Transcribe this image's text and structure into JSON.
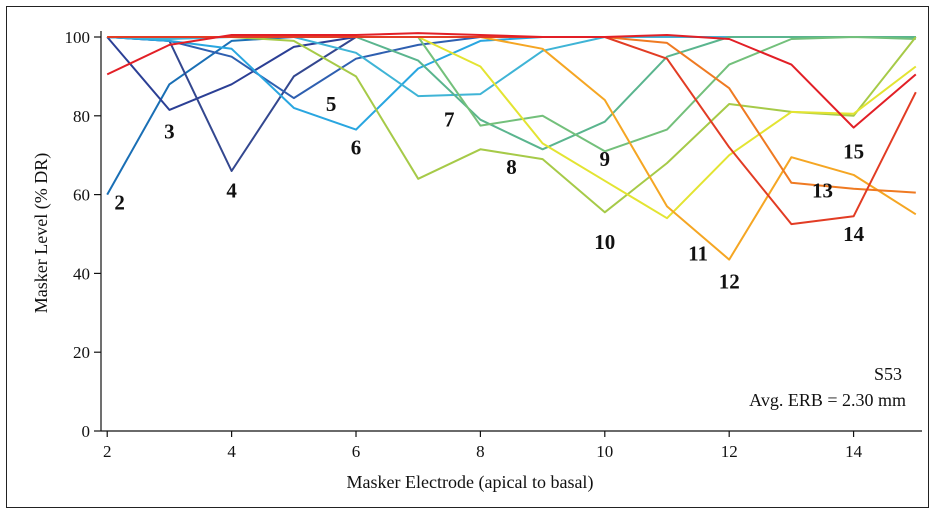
{
  "chart_data": {
    "type": "line",
    "xlabel": "Masker Electrode  (apical to basal)",
    "ylabel": "Masker Level (% DR)",
    "xlim": [
      1.9,
      15.1
    ],
    "ylim": [
      0,
      100
    ],
    "xticks": [
      2,
      4,
      6,
      8,
      10,
      12,
      14
    ],
    "yticks": [
      0,
      20,
      40,
      60,
      80,
      100
    ],
    "grid": false,
    "annotations": [
      "S53",
      "Avg. ERB = 2.30 mm"
    ],
    "x": [
      2,
      3,
      4,
      5,
      6,
      7,
      8,
      9,
      10,
      11,
      12,
      13,
      14,
      15
    ],
    "series": [
      {
        "name": "2",
        "color": "#1a6fb5",
        "x": [
          2,
          3,
          4,
          5,
          6,
          7,
          8,
          9,
          10,
          11,
          12,
          13,
          14,
          15
        ],
        "values": [
          60,
          88,
          99,
          100,
          100,
          100,
          100,
          100,
          100,
          100,
          100,
          100,
          100,
          100
        ],
        "label_at": [
          2.2,
          58
        ]
      },
      {
        "name": "3",
        "color": "#2b3f95",
        "x": [
          2,
          3,
          4,
          5,
          6,
          7,
          8,
          9,
          10,
          11,
          12,
          13,
          14,
          15
        ],
        "values": [
          100,
          81.5,
          88,
          97.5,
          100,
          100,
          100,
          100,
          100,
          100,
          100,
          100,
          100,
          100
        ],
        "label_at": [
          3,
          76
        ]
      },
      {
        "name": "4",
        "color": "#33478f",
        "x": [
          2,
          3,
          4,
          5,
          6,
          7,
          8,
          9,
          10,
          11,
          12,
          13,
          14,
          15
        ],
        "values": [
          100,
          99,
          66,
          90,
          100,
          100,
          100,
          100,
          100,
          100,
          100,
          100,
          100,
          100
        ],
        "label_at": [
          4,
          61
        ]
      },
      {
        "name": "5",
        "color": "#2e5fb0",
        "x": [
          2,
          3,
          4,
          5,
          6,
          7,
          8,
          9,
          10,
          11,
          12,
          13,
          14,
          15
        ],
        "values": [
          100,
          99,
          95,
          84.5,
          94.5,
          98,
          100,
          100,
          100,
          100,
          100,
          100,
          100,
          100
        ],
        "label_at": [
          5.6,
          83
        ]
      },
      {
        "name": "6",
        "color": "#29a6e0",
        "x": [
          2,
          3,
          4,
          5,
          6,
          7,
          8,
          9,
          10,
          11,
          12,
          13,
          14,
          15
        ],
        "values": [
          100,
          99,
          97,
          82,
          76.5,
          92,
          99,
          100,
          100,
          100,
          100,
          100,
          100,
          100
        ],
        "label_at": [
          6,
          72
        ]
      },
      {
        "name": "7",
        "color": "#3fb4d6",
        "x": [
          2,
          3,
          4,
          5,
          6,
          7,
          8,
          9,
          10,
          11,
          12,
          13,
          14,
          15
        ],
        "values": [
          100,
          99.5,
          100,
          100,
          96,
          85,
          85.5,
          96.5,
          100,
          100,
          100,
          100,
          100,
          100
        ],
        "label_at": [
          7.5,
          79
        ]
      },
      {
        "name": "8",
        "color": "#5ab58e",
        "x": [
          2,
          3,
          4,
          5,
          6,
          7,
          8,
          9,
          10,
          11,
          12,
          13,
          14,
          15
        ],
        "values": [
          100,
          100,
          100,
          100,
          100,
          94,
          79,
          71.5,
          78.5,
          95,
          100,
          100,
          100,
          100
        ],
        "label_at": [
          8.5,
          67
        ]
      },
      {
        "name": "9",
        "color": "#73c07b",
        "x": [
          2,
          3,
          4,
          5,
          6,
          7,
          8,
          9,
          10,
          11,
          12,
          13,
          14,
          15
        ],
        "values": [
          100,
          100,
          100,
          100,
          100,
          100,
          77.5,
          80,
          71,
          76.5,
          93,
          99.5,
          100,
          99.5
        ],
        "label_at": [
          10,
          69
        ]
      },
      {
        "name": "10",
        "color": "#a6ca48",
        "x": [
          2,
          3,
          4,
          5,
          6,
          7,
          8,
          9,
          10,
          11,
          12,
          13,
          14,
          15
        ],
        "values": [
          100,
          100,
          100,
          99,
          90,
          64,
          71.5,
          69,
          55.5,
          68,
          83,
          81,
          80,
          100
        ],
        "label_at": [
          10,
          48
        ]
      },
      {
        "name": "11",
        "color": "#e3e432",
        "x": [
          2,
          3,
          4,
          5,
          6,
          7,
          8,
          9,
          10,
          11,
          12,
          13,
          14,
          15
        ],
        "values": [
          100,
          100,
          100,
          100,
          100,
          100,
          92.5,
          73,
          63.5,
          54,
          70,
          81,
          80.5,
          92.5
        ],
        "label_at": [
          11.5,
          45
        ]
      },
      {
        "name": "12",
        "color": "#f5a623",
        "x": [
          2,
          3,
          4,
          5,
          6,
          7,
          8,
          9,
          10,
          11,
          12,
          13,
          14,
          15
        ],
        "values": [
          100,
          100,
          100,
          100,
          100,
          100,
          100,
          97,
          84,
          57,
          43.5,
          69.5,
          65,
          55
        ],
        "label_at": [
          12,
          38
        ]
      },
      {
        "name": "13",
        "color": "#ef7a22",
        "x": [
          2,
          3,
          4,
          5,
          6,
          7,
          8,
          9,
          10,
          11,
          12,
          13,
          14,
          15
        ],
        "values": [
          100,
          100,
          100,
          100,
          100,
          100,
          100,
          100,
          100,
          98.5,
          87,
          63,
          61.5,
          60.5
        ],
        "label_at": [
          13.5,
          61
        ]
      },
      {
        "name": "14",
        "color": "#e23c24",
        "x": [
          2,
          3,
          4,
          5,
          6,
          7,
          8,
          9,
          10,
          11,
          12,
          13,
          14,
          15
        ],
        "values": [
          100,
          100,
          100,
          100,
          100,
          100,
          100,
          100,
          100,
          94.5,
          72,
          52.5,
          54.5,
          86
        ],
        "label_at": [
          14,
          50
        ]
      },
      {
        "name": "15",
        "color": "#e21f26",
        "x": [
          2,
          3,
          4,
          5,
          6,
          7,
          8,
          9,
          10,
          11,
          12,
          13,
          14,
          15
        ],
        "values": [
          90.5,
          98,
          100.5,
          100.5,
          100.5,
          101,
          100.5,
          100,
          100,
          100.5,
          99.5,
          93,
          77,
          90.5
        ],
        "label_at": [
          14,
          71
        ]
      }
    ]
  }
}
